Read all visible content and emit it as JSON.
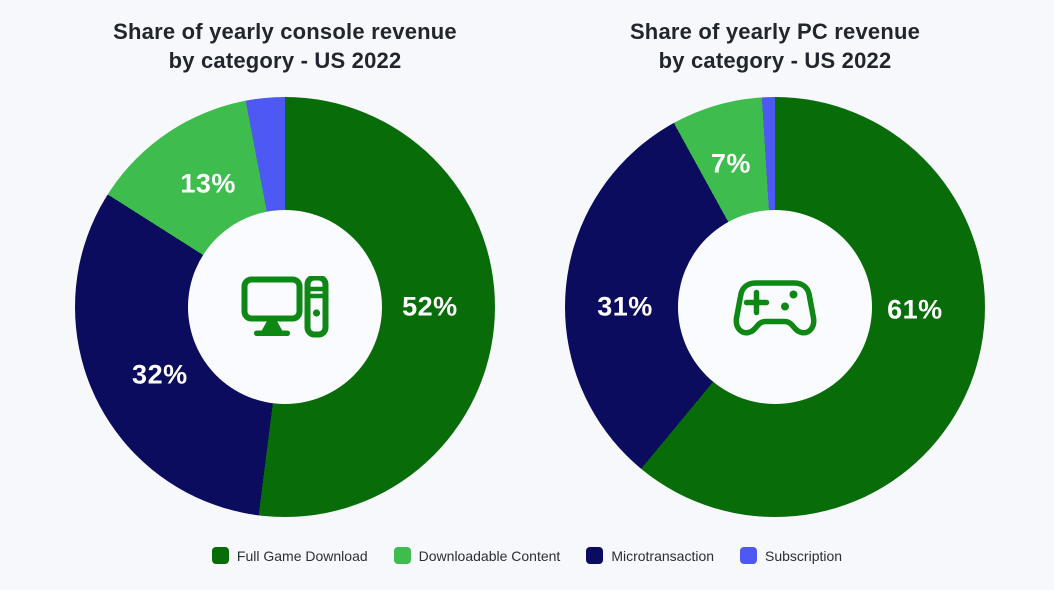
{
  "page": {
    "background_color": "#f7f8fb",
    "title_color": "#21252d",
    "label_text_color": "#ffffff",
    "icon_color": "#0e8815"
  },
  "chart_data": [
    {
      "type": "pie",
      "subtype": "donut",
      "title": "Share of yearly console revenue by category - US 2022",
      "title_lines": [
        "Share of yearly console revenue",
        "by category - US 2022"
      ],
      "center_icon": "desktop-computer-icon",
      "unit": "%",
      "hole_ratio": 0.46,
      "start_angle_deg": 0,
      "direction": "clockwise",
      "slices": [
        {
          "label": "Full Game Download",
          "value": 52,
          "display": "52%",
          "color": "#086d08",
          "label_pos": {
            "x": "84.5%",
            "y": "50%"
          }
        },
        {
          "label": "Microtransaction",
          "value": 32,
          "display": "32%",
          "color": "#0c0c5e",
          "label_pos": {
            "x": "20.2%",
            "y": "66.2%"
          }
        },
        {
          "label": "Downloadable Content",
          "value": 13,
          "display": "13%",
          "color": "#3ebc4e",
          "label_pos": {
            "x": "31.7%",
            "y": "20.7%"
          }
        },
        {
          "label": "Subscription",
          "value": 3,
          "display": "",
          "color": "#4d59f2"
        }
      ]
    },
    {
      "type": "pie",
      "subtype": "donut",
      "title": "Share of yearly PC revenue by category - US 2022",
      "title_lines": [
        "Share of yearly PC revenue",
        "by category - US 2022"
      ],
      "center_icon": "gamepad-icon",
      "unit": "%",
      "hole_ratio": 0.46,
      "start_angle_deg": 0,
      "direction": "clockwise",
      "slices": [
        {
          "label": "Full Game Download",
          "value": 61,
          "display": "61%",
          "color": "#086d08",
          "label_pos": {
            "x": "83.3%",
            "y": "50.7%"
          }
        },
        {
          "label": "Microtransaction",
          "value": 31,
          "display": "31%",
          "color": "#0c0c5e",
          "label_pos": {
            "x": "14.3%",
            "y": "50%"
          }
        },
        {
          "label": "Downloadable Content",
          "value": 7,
          "display": "7%",
          "color": "#3ebc4e",
          "label_pos": {
            "x": "39.5%",
            "y": "16%"
          }
        },
        {
          "label": "Subscription",
          "value": 1,
          "display": "",
          "color": "#4d59f2"
        }
      ]
    }
  ],
  "legend": {
    "position": "bottom",
    "items": [
      {
        "label": "Full Game Download",
        "color": "#086d08"
      },
      {
        "label": "Downloadable Content",
        "color": "#3ebc4e"
      },
      {
        "label": "Microtransaction",
        "color": "#0c0c5e"
      },
      {
        "label": "Subscription",
        "color": "#4d59f2"
      }
    ]
  }
}
